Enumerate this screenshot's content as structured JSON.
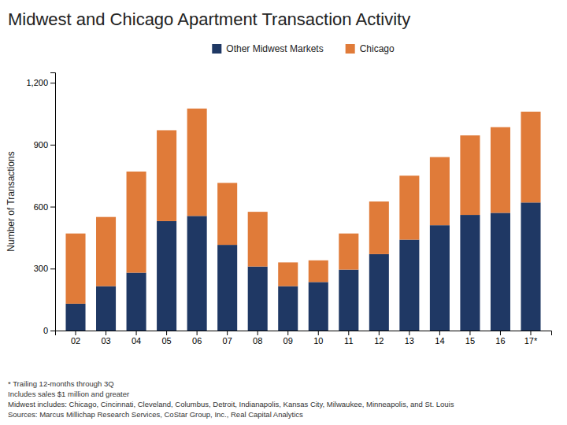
{
  "chart_data": {
    "type": "bar",
    "stacked": true,
    "title": "Midwest and Chicago Apartment Transaction Activity",
    "ylabel": "Number of Transactions",
    "categories": [
      "02",
      "03",
      "04",
      "05",
      "06",
      "07",
      "08",
      "09",
      "10",
      "11",
      "12",
      "13",
      "14",
      "15",
      "16",
      "17*"
    ],
    "series": [
      {
        "name": "Other Midwest Markets",
        "color": "#1f3864",
        "values": [
          130,
          215,
          280,
          530,
          555,
          415,
          310,
          215,
          235,
          295,
          370,
          440,
          510,
          560,
          570,
          620
        ]
      },
      {
        "name": "Chicago",
        "color": "#e07b39",
        "values": [
          340,
          335,
          490,
          440,
          520,
          300,
          265,
          115,
          105,
          175,
          255,
          310,
          330,
          385,
          415,
          440
        ]
      }
    ],
    "ylim": [
      0,
      1250
    ],
    "yticks": [
      0,
      300,
      600,
      900,
      {
        "value": 1200,
        "label": "1,200"
      }
    ],
    "grid": false,
    "legend": "top",
    "annotations": [
      "* Trailing 12-months through 3Q",
      "Includes sales $1 million and greater",
      "Midwest includes: Chicago, Cincinnati, Cleveland, Columbus, Detroit, Indianapolis, Kansas City, Milwaukee, Minneapolis, and St. Louis",
      "Sources: Marcus Millichap Research Services, CoStar Group, Inc., Real Capital Analytics"
    ]
  }
}
